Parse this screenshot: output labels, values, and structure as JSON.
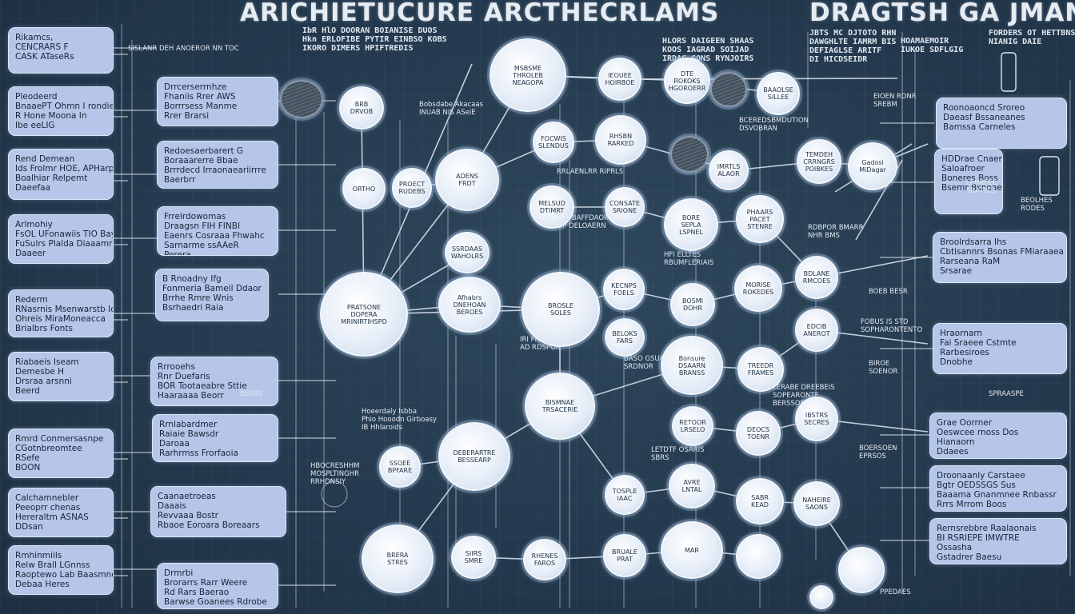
{
  "title": {
    "main": "ARICHIETUCURE ARCTHECRLAMS",
    "right": "DRAGTSH GA JMAN",
    "subtitle_main": "IbR HlO DOORAN BOIANISE DUOS\nHkn ERLOFIBE PYTIR EINBSO KOBS\nIKORO DIMERS HPIFTREDIS",
    "subtitle_mid": "HLORS DAIGEEN SHAAS\nKOOS IAGRAD SOIJAD\nIRDAG GONS RYNJOIRS",
    "subtitle_right_a": "JBTS MC DJTOTO RHN\nDAWGHLTE IAMRM BIS\nDEFIAGLSE ARITF\nDI HICDSEIDR",
    "subtitle_right_b": "FORDERS OT HETTBNS\nNIANIG DAIE",
    "subtitle_right_c": "HOAMAEMOIR\nIUKOE SDFLGIG"
  },
  "left_panels": [
    {
      "text": "Rikamcs,\nCENCRARS F\nCASK ATaseRs"
    },
    {
      "text": "Pleodeerd\nBnaaePT Ohmn I rondie\nR Hone Moona In\nIbe eeLIG"
    },
    {
      "text": "Rend Demean\nIds Frolmr HOE, APHarp\nBoalhiar Relpemt\nDaeefaa"
    },
    {
      "text": "Arlmohiy\nFsOL UFonawiis TIO Bay\nFuSulrs Plalda Diaaamr\nDaaeer"
    },
    {
      "text": "Rederm\nRNasrnis Msenwarstb Ionn\nOhreis MiraMoneacca\nBrialbrs Fonts"
    },
    {
      "text": "Riabaeis Iseam\nDemesbe H\nDrsraa arsnni\nBeerd"
    },
    {
      "text": "Rmrd Conmersasnpe\nCGotnbreomtee\nRSefe\nBOON"
    },
    {
      "text": "Calchamnebler\nPeeoprr chenas\nHereraltm ASNAS\nDDsan"
    },
    {
      "text": "Rmhinmiils\nRelw Brall LGnnss\nRaoptewo Lab Baasmne\nDebaa Heres"
    }
  ],
  "mid_panels": [
    {
      "text": "Drrcerserrnhze\nFhaniis Rrer AWS\nBorrrsess Manme\nRrer Brarsi"
    },
    {
      "text": "Redoesaerbarert G\nBoraaarerre Bbae\nBrrrdecd Irraonaeariirrre\nBaerbrr"
    },
    {
      "text": "Frrelrdowomas\nDraagsn FIH FINBI\nEaenrs Cosraaa Fhwahc\nSarnarme ssAAeR\nPerera"
    },
    {
      "text": "B Rnoadny Ifg\nFonmeria Bameil Ddaor\nBrrhe Rmre Wnis\nBsrhaedri Raia"
    },
    {
      "text": "Rrrooehs\nRnr Duefaris\nBOR Tootaeabre Sttie\nHaaraaaa Beorr"
    },
    {
      "text": "Rrnlabardmer\nRaiaie Bawsdr\nDaroaa\nRarhrmss Frorfaoia"
    },
    {
      "text": "Caanaetroeas\nDaaais\nRevvaaa Bostr\nRbaoe Eoroara Boreaars"
    },
    {
      "text": "Drmrbi\nBrorarrs Rarr Weere\nRd Rars Baerao\nBarwse Goanees Rdrobe"
    }
  ],
  "right_panels": [
    {
      "text": "Roonoaoncd Sroreo\nDaeasf Bssaneanes\nBamssa Carneles"
    },
    {
      "text": "HDDrae Cnaenso\nSaloafroer\nBoneres Boss\nBsemr Bsnoaenls"
    },
    {
      "text": "Broolrdsarra Ihs\nCbtisannrs Bsonas FMiaraaea\nRarseana RaM\nSrsarae"
    },
    {
      "text": "Hraornarn\nFai Sraeee Cstmte\nRarbesiroes\nDnobhe"
    },
    {
      "text": "Grae Oorrner\nOeswcee rnoss Dos\nHianaorn\nDdaees"
    },
    {
      "text": "Droonaanly Carstaee\nBgtr OEDSSGS Sus\nBaaama Gnanmnee Rnbassr\nRrrs Mrrom Boos"
    },
    {
      "text": "Rernsrebbre Raalaonais\nBI RSRIEPE IMWTRE\nOssasha\nGstadrer Baesu"
    }
  ],
  "nodes": [
    {
      "text": "",
      "dark": true
    },
    {
      "text": "BRB\nDRVOB"
    },
    {
      "text": "MSBSME\nTHROLEB\nNEAGOPA"
    },
    {
      "text": "IEOUEE\nHOIRBOE"
    },
    {
      "text": "DTE\nROKOKS\nHGOROERR"
    },
    {
      "text": "",
      "dark": true
    },
    {
      "text": "BAAOLSE\nSILLEE"
    },
    {
      "text": "FOCWIS\nSLENDUS"
    },
    {
      "text": "RHSBN\nRARKED"
    },
    {
      "text": "IMRTLS\nALAOR"
    },
    {
      "text": "TEMDEH\nCRRNGRS\nPOIBKES"
    },
    {
      "text": "",
      "dark": true
    },
    {
      "text": "Gadosi\nMiDagar"
    },
    {
      "text": "ORTHO"
    },
    {
      "text": "PROECT\nRUDEBS"
    },
    {
      "text": "ADENS\nFRDT"
    },
    {
      "text": "MELSUD\nDTIMRT"
    },
    {
      "text": "CONSATE\nSRIONE"
    },
    {
      "text": "BORE\nSEPLA\nLSPNEL"
    },
    {
      "text": "PHAARS\nPACET\nSTENRE"
    },
    {
      "text": "PRATSONE\nDOPERA\nMRINIRTIHSPD"
    },
    {
      "text": "SSRDAAS\nWAHOLRS"
    },
    {
      "text": "Afhabrs\nDNEHOAN\nBEROES"
    },
    {
      "text": "BROSLE\nSOLES"
    },
    {
      "text": "KECNPS\nFOELS"
    },
    {
      "text": "BOSMI\nDOHR"
    },
    {
      "text": "MORISE\nROKEDES"
    },
    {
      "text": "BDLANE\nRMCOES"
    },
    {
      "text": "BELOKS\nFARS"
    },
    {
      "text": "Bonsure\nDSAARN\nBRANSS"
    },
    {
      "text": "TREEDR\nFRAMES"
    },
    {
      "text": "EDCIB\nANEROT"
    },
    {
      "text": "BISMNAE\nTRSACERIE"
    },
    {
      "text": "RETOOR\nLRSELO"
    },
    {
      "text": "DEOCS\nTOENR"
    },
    {
      "text": "IBSTRS\nSECRES"
    },
    {
      "text": "SSOEE\nBPFARE"
    },
    {
      "text": "DEBERARTRE\nBESSEARP"
    },
    {
      "text": "TOSPLE\nIAAC"
    },
    {
      "text": "AVRE\nLNTAL"
    },
    {
      "text": "SABR\nKEAD"
    },
    {
      "text": "NAHEIRE\nSAONS"
    },
    {
      "text": "BRERA\nSTRES"
    },
    {
      "text": "SIIRS\nSMRE"
    },
    {
      "text": "RHENES\nFAROS"
    },
    {
      "text": "BRUALE\nPRAT"
    },
    {
      "text": "MAR"
    },
    {
      "text": ""
    }
  ],
  "labels": [
    {
      "text": "SISLANR DEH ANOEROR NN TOC"
    },
    {
      "text": "Bobsdabe Akacaas\nINUAB NIS ASeiE"
    },
    {
      "text": "BCEREDSBMDUTION\nDSVOBRAN"
    },
    {
      "text": "RRLAENLRR RIPRLS"
    },
    {
      "text": "FFH BAFFDAORD\nLIP OELOAERN"
    },
    {
      "text": "HFI ELLTES\nRBUMFLERIAIS"
    },
    {
      "text": "IRI FRBP IS\nAD RDSPOR"
    },
    {
      "text": "BASO GSUAS\nSRDNOR"
    },
    {
      "text": "Hoeerdaly Isbba\nPhio Hooodn Girboasy\nIB Hhlaroids"
    },
    {
      "text": "HBOCRESHHM\nMOSPLTINGHR\nRRHDNSIY"
    },
    {
      "text": "LETDTF OSARIS\nSBRS"
    },
    {
      "text": "RDBPOR BMARR\nNHR BMS"
    },
    {
      "text": "EIOEN RDNR\nSREBM"
    },
    {
      "text": "BOEB BESR"
    },
    {
      "text": "FOBUS IS STD\nSOPHARONTENTO"
    },
    {
      "text": "BIROE\nSOENOR"
    },
    {
      "text": "LERABE DREEBEIS\nSOPEARONTE\nBERSSOE"
    },
    {
      "text": "SPRAASPE"
    },
    {
      "text": "BOERSOEN\nEPRSOS"
    },
    {
      "text": "PPEDAES"
    },
    {
      "text": "LENRFEE\nSBATTCS"
    },
    {
      "text": "BEOLHES\nRODES"
    },
    {
      "text": "BERRS"
    }
  ],
  "colors": {
    "background": "#263a4d",
    "panel_fill": "#b5c6e8",
    "node_fill": "#e9f0f9",
    "wire": "#dfe8f2",
    "text_light": "#e6ecf2"
  }
}
